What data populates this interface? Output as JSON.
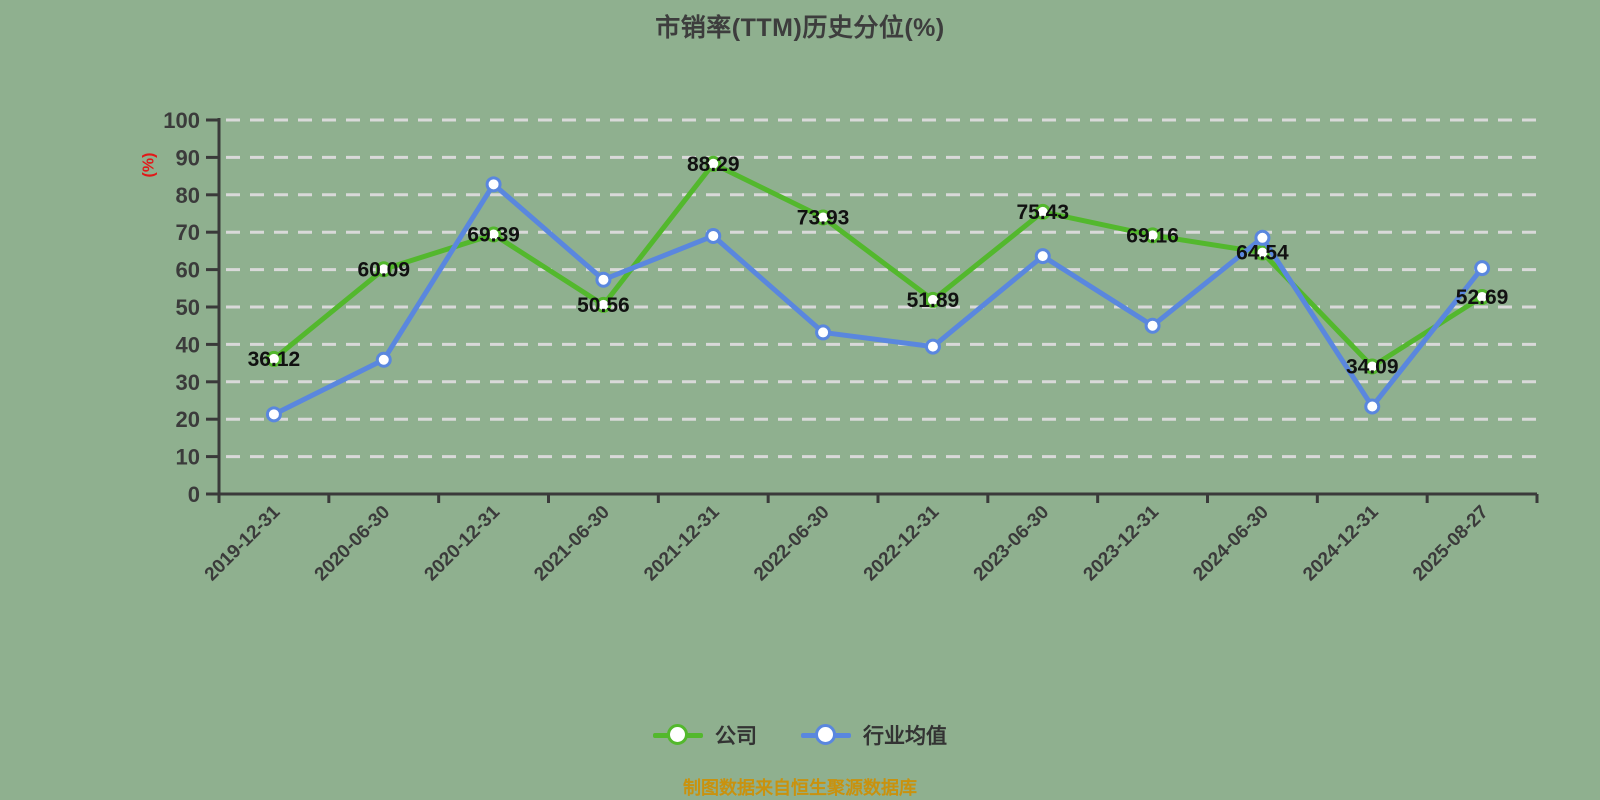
{
  "title": "市销率(TTM)历史分位(%)",
  "y_axis": {
    "unit_label": "(%)"
  },
  "legend": {
    "items": [
      {
        "label": "公司"
      },
      {
        "label": "行业均值"
      }
    ]
  },
  "caption": "制图数据来自恒生聚源数据库",
  "colors": {
    "background": "#8FB08F",
    "grid": "#D9D9D9",
    "axis": "#3A3A3A",
    "tick_label": "#3B3B3B",
    "title": "#3D3D3D",
    "value_label": "#111111",
    "unit_label": "#E21818",
    "caption": "#C9920E",
    "marker_fill": "#FFFFFF",
    "company_green": "#53B82D",
    "industry_blue": "#5A87DE"
  },
  "chart_data": {
    "type": "line",
    "title": "市销率(TTM)历史分位(%)",
    "categories": [
      "2019-12-31",
      "2020-06-30",
      "2020-12-31",
      "2021-06-30",
      "2021-12-31",
      "2022-06-30",
      "2022-12-31",
      "2023-06-30",
      "2023-12-31",
      "2024-06-30",
      "2024-12-31",
      "2025-08-27"
    ],
    "series": [
      {
        "name": "公司",
        "color": "#53B82D",
        "values": [
          36.12,
          60.09,
          69.39,
          50.56,
          88.29,
          73.93,
          51.89,
          75.43,
          69.16,
          64.54,
          34.09,
          52.69
        ],
        "data_labels": true,
        "estimated": false
      },
      {
        "name": "行业均值",
        "color": "#5A87DE",
        "values": [
          21.3,
          35.9,
          82.8,
          57.3,
          69.0,
          43.2,
          39.4,
          63.6,
          45.0,
          68.5,
          23.4,
          60.4
        ],
        "data_labels": false,
        "estimated": true
      }
    ],
    "ylabel": "(%)",
    "ylim": [
      0,
      100
    ],
    "y_tick_step": 10,
    "grid": "horizontal-dashed",
    "legend_position": "bottom"
  }
}
